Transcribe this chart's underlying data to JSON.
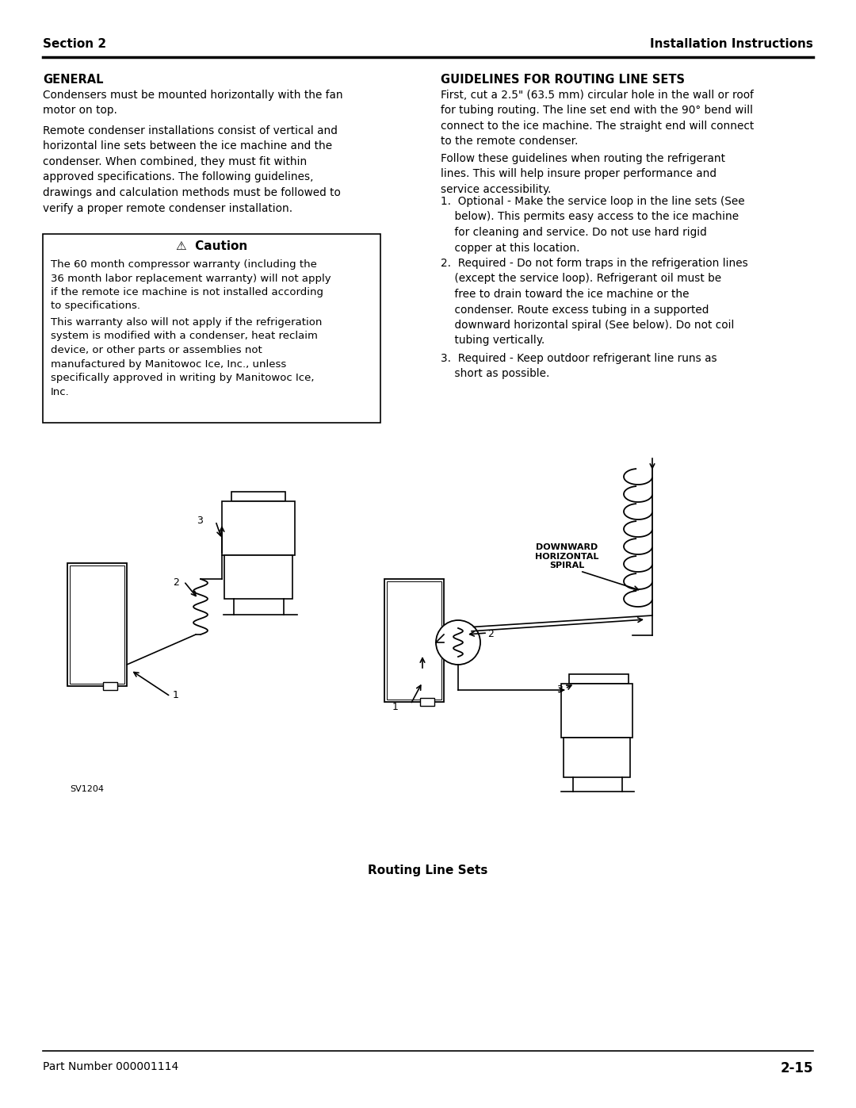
{
  "page_title_left": "Section 2",
  "page_title_right": "Installation Instructions",
  "footer_left": "Part Number 000001114",
  "footer_right": "2-15",
  "section_left_title": "GENERAL",
  "section_left_p1": "Condensers must be mounted horizontally with the fan\nmotor on top.",
  "section_left_p2": "Remote condenser installations consist of vertical and\nhorizontal line sets between the ice machine and the\ncondenser. When combined, they must fit within\napproved specifications. The following guidelines,\ndrawings and calculation methods must be followed to\nverify a proper remote condenser installation.",
  "caution_title": "⚠  Caution",
  "caution_p1": "The 60 month compressor warranty (including the\n36 month labor replacement warranty) will not apply\nif the remote ice machine is not installed according\nto specifications.",
  "caution_p2": "This warranty also will not apply if the refrigeration\nsystem is modified with a condenser, heat reclaim\ndevice, or other parts or assemblies not\nmanufactured by Manitowoc Ice, Inc., unless\nspecifically approved in writing by Manitowoc Ice,\nInc.",
  "section_right_title": "GUIDELINES FOR ROUTING LINE SETS",
  "section_right_p1": "First, cut a 2.5\" (63.5 mm) circular hole in the wall or roof\nfor tubing routing. The line set end with the 90° bend will\nconnect to the ice machine. The straight end will connect\nto the remote condenser.",
  "section_right_p2": "Follow these guidelines when routing the refrigerant\nlines. This will help insure proper performance and\nservice accessibility.",
  "guideline_1": "1.  Optional - Make the service loop in the line sets (See\n    below). This permits easy access to the ice machine\n    for cleaning and service. Do not use hard rigid\n    copper at this location.",
  "guideline_2": "2.  Required - Do not form traps in the refrigeration lines\n    (except the service loop). Refrigerant oil must be\n    free to drain toward the ice machine or the\n    condenser. Route excess tubing in a supported\n    downward horizontal spiral (See below). Do not coil\n    tubing vertically.",
  "guideline_3": "3.  Required - Keep outdoor refrigerant line runs as\n    short as possible.",
  "diagram_caption": "Routing Line Sets",
  "diagram_label_sv": "SV1204",
  "diagram_label_downward": "DOWNWARD\nHORIZONTAL\nSPIRAL",
  "bg_color": "#ffffff",
  "text_color": "#000000"
}
